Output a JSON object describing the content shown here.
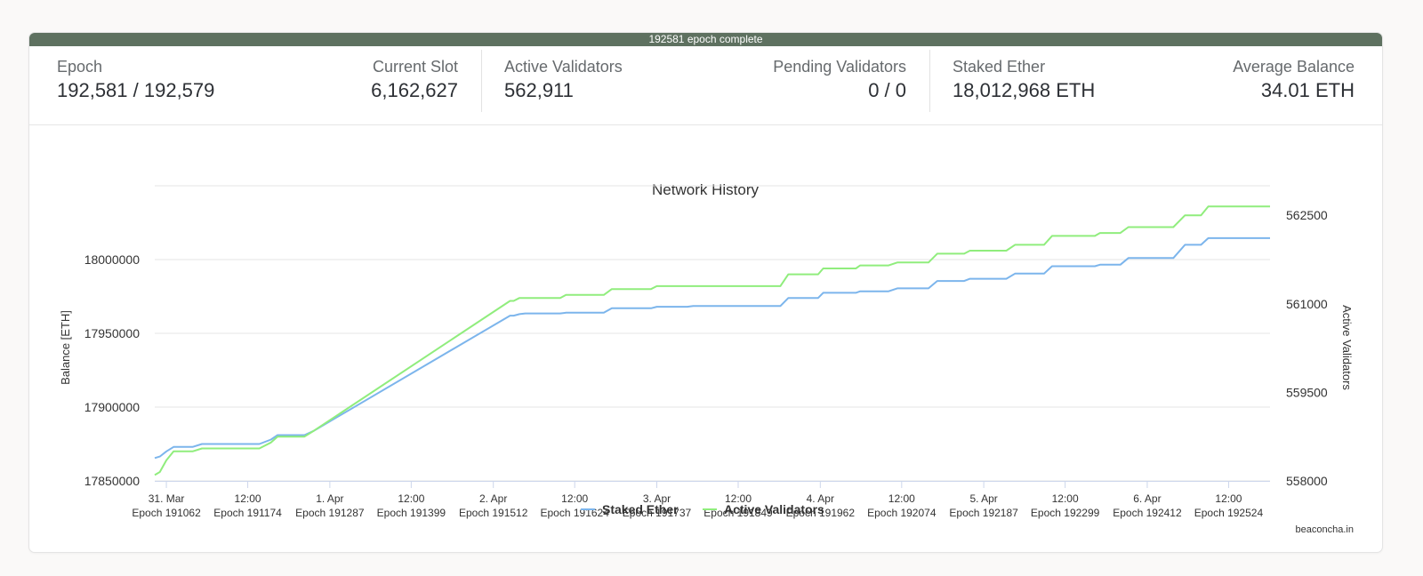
{
  "progress": {
    "label": "192581 epoch complete",
    "fraction": 1.0
  },
  "stats": [
    {
      "label": "Epoch",
      "value": "192,581 / 192,579"
    },
    {
      "label": "Current Slot",
      "value": "6,162,627"
    },
    {
      "label": "Active Validators",
      "value": "562,911"
    },
    {
      "label": "Pending Validators",
      "value": "0 / 0"
    },
    {
      "label": "Staked Ether",
      "value": "18,012,968 ETH"
    },
    {
      "label": "Average Balance",
      "value": "34.01 ETH"
    }
  ],
  "credit": "beaconcha.in",
  "colors": {
    "staked": "#7cb5ec",
    "active": "#90ed7d",
    "progress": "#5e7160"
  },
  "chart_data": {
    "type": "line",
    "title": "Network History",
    "ylabel_left": "Balance [ETH]",
    "ylabel_right": "Active Validators",
    "ylim_left": [
      17850000,
      18050000
    ],
    "ylim_right": [
      558000,
      563000
    ],
    "yticks_left": [
      "17850000",
      "17900000",
      "17950000",
      "18000000"
    ],
    "yticks_right": [
      "558000",
      "559500",
      "561000",
      "562500"
    ],
    "xticks": [
      {
        "date": "31. Mar",
        "epoch": "Epoch 191062"
      },
      {
        "date": "12:00",
        "epoch": "Epoch 191174"
      },
      {
        "date": "1. Apr",
        "epoch": "Epoch 191287"
      },
      {
        "date": "12:00",
        "epoch": "Epoch 191399"
      },
      {
        "date": "2. Apr",
        "epoch": "Epoch 191512"
      },
      {
        "date": "12:00",
        "epoch": "Epoch 191624"
      },
      {
        "date": "3. Apr",
        "epoch": "Epoch 191737"
      },
      {
        "date": "12:00",
        "epoch": "Epoch 191849"
      },
      {
        "date": "4. Apr",
        "epoch": "Epoch 191962"
      },
      {
        "date": "12:00",
        "epoch": "Epoch 192074"
      },
      {
        "date": "5. Apr",
        "epoch": "Epoch 192187"
      },
      {
        "date": "12:00",
        "epoch": "Epoch 192299"
      },
      {
        "date": "6. Apr",
        "epoch": "Epoch 192412"
      },
      {
        "date": "12:00",
        "epoch": "Epoch 192524"
      }
    ],
    "x_domain": [
      191046,
      192581
    ],
    "series": [
      {
        "name": "Staked Ether",
        "axis": "left",
        "x": [
          191046,
          191053,
          191062,
          191072,
          191098,
          191111,
          191156,
          191190,
          191206,
          191215,
          191252,
          191265,
          191535,
          191540,
          191548,
          191556,
          191604,
          191612,
          191664,
          191675,
          191729,
          191737,
          191779,
          191787,
          191907,
          191918,
          191959,
          191966,
          192011,
          192017,
          192056,
          192068,
          192111,
          192123,
          192160,
          192168,
          192218,
          192230,
          192270,
          192281,
          192340,
          192347,
          192375,
          192386,
          192448,
          192464,
          192486,
          192496,
          192513,
          192518,
          192581
        ],
        "y": [
          17865500,
          17866500,
          17870000,
          17873000,
          17873000,
          17875000,
          17875000,
          17875000,
          17878000,
          17881000,
          17881000,
          17884000,
          17962000,
          17962000,
          17963000,
          17963500,
          17963500,
          17964000,
          17964000,
          17967000,
          17967000,
          17968000,
          17968000,
          17968500,
          17968500,
          17974000,
          17974000,
          17977500,
          17977500,
          17978500,
          17978500,
          17980500,
          17980500,
          17985500,
          17985500,
          17987000,
          17987000,
          17990500,
          17990500,
          17995500,
          17995500,
          17996500,
          17996500,
          18001000,
          18001000,
          18010000,
          18010000,
          18014500,
          18014500,
          18014500,
          18014500
        ]
      },
      {
        "name": "Active Validators",
        "axis": "right",
        "x": [
          191046,
          191053,
          191062,
          191072,
          191098,
          191111,
          191156,
          191190,
          191206,
          191215,
          191252,
          191265,
          191535,
          191540,
          191548,
          191556,
          191604,
          191612,
          191664,
          191675,
          191729,
          191737,
          191779,
          191787,
          191907,
          191918,
          191959,
          191966,
          192011,
          192017,
          192056,
          192068,
          192111,
          192123,
          192160,
          192168,
          192218,
          192230,
          192270,
          192281,
          192340,
          192347,
          192375,
          192386,
          192448,
          192464,
          192486,
          192496,
          192513,
          192518,
          192581
        ],
        "y": [
          558100,
          558150,
          558350,
          558500,
          558500,
          558550,
          558550,
          558550,
          558650,
          558750,
          558750,
          558850,
          561050,
          561050,
          561100,
          561100,
          561100,
          561150,
          561150,
          561250,
          561250,
          561300,
          561300,
          561300,
          561300,
          561500,
          561500,
          561600,
          561600,
          561650,
          561650,
          561700,
          561700,
          561850,
          561850,
          561900,
          561900,
          562000,
          562000,
          562150,
          562150,
          562200,
          562200,
          562300,
          562300,
          562500,
          562500,
          562650,
          562650,
          562650,
          562650
        ]
      }
    ],
    "legend": "bottom-center",
    "grid": true
  }
}
